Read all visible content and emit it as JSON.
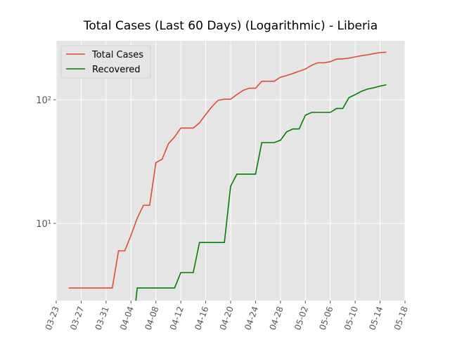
{
  "chart_data": {
    "type": "line",
    "title": "Total Cases (Last 60 Days) (Logarithmic) - Liberia",
    "x": [
      "03-25",
      "03-26",
      "03-27",
      "03-28",
      "03-29",
      "03-30",
      "03-31",
      "04-01",
      "04-02",
      "04-03",
      "04-04",
      "04-05",
      "04-06",
      "04-07",
      "04-08",
      "04-09",
      "04-10",
      "04-11",
      "04-12",
      "04-13",
      "04-14",
      "04-15",
      "04-16",
      "04-17",
      "04-18",
      "04-19",
      "04-20",
      "04-21",
      "04-22",
      "04-23",
      "04-24",
      "04-25",
      "04-26",
      "04-27",
      "04-28",
      "04-29",
      "04-30",
      "05-01",
      "05-02",
      "05-03",
      "05-04",
      "05-05",
      "05-06",
      "05-07",
      "05-08",
      "05-09",
      "05-10",
      "05-11",
      "05-12",
      "05-13",
      "05-14",
      "05-15"
    ],
    "series": [
      {
        "name": "Total Cases",
        "color": "#E24A33",
        "values": [
          3,
          3,
          3,
          3,
          3,
          3,
          3,
          3,
          6,
          6,
          8,
          11,
          14,
          14,
          31,
          33,
          44,
          50,
          59,
          59,
          59,
          65,
          76,
          88,
          99,
          101,
          101,
          110,
          119,
          124,
          124,
          141,
          141,
          141,
          152,
          157,
          163,
          170,
          177,
          190,
          199,
          199,
          203,
          213,
          214,
          217,
          222,
          227,
          231,
          236,
          241,
          242
        ]
      },
      {
        "name": "Recovered",
        "color": "#008000",
        "values": [
          null,
          null,
          null,
          null,
          null,
          null,
          null,
          null,
          null,
          null,
          1,
          3,
          3,
          3,
          3,
          3,
          3,
          3,
          4,
          4,
          4,
          7,
          7,
          7,
          7,
          7,
          20,
          25,
          25,
          25,
          25,
          45,
          45,
          45,
          47,
          55,
          58,
          58,
          75,
          79,
          79,
          79,
          79,
          85,
          85,
          104,
          110,
          117,
          122,
          125,
          129,
          132
        ]
      }
    ],
    "xlim": [
      "03-23",
      "05-18"
    ],
    "xticks": [
      "03-23",
      "03-27",
      "03-31",
      "04-04",
      "04-08",
      "04-12",
      "04-16",
      "04-20",
      "04-24",
      "04-28",
      "05-02",
      "05-06",
      "05-10",
      "05-14",
      "05-18"
    ],
    "ylim": [
      2.37,
      300
    ],
    "yscale": "log",
    "yticks": [
      {
        "value": 10,
        "label": "10¹"
      },
      {
        "value": 100,
        "label": "10²"
      }
    ],
    "grid": true,
    "legend": "upper left"
  }
}
